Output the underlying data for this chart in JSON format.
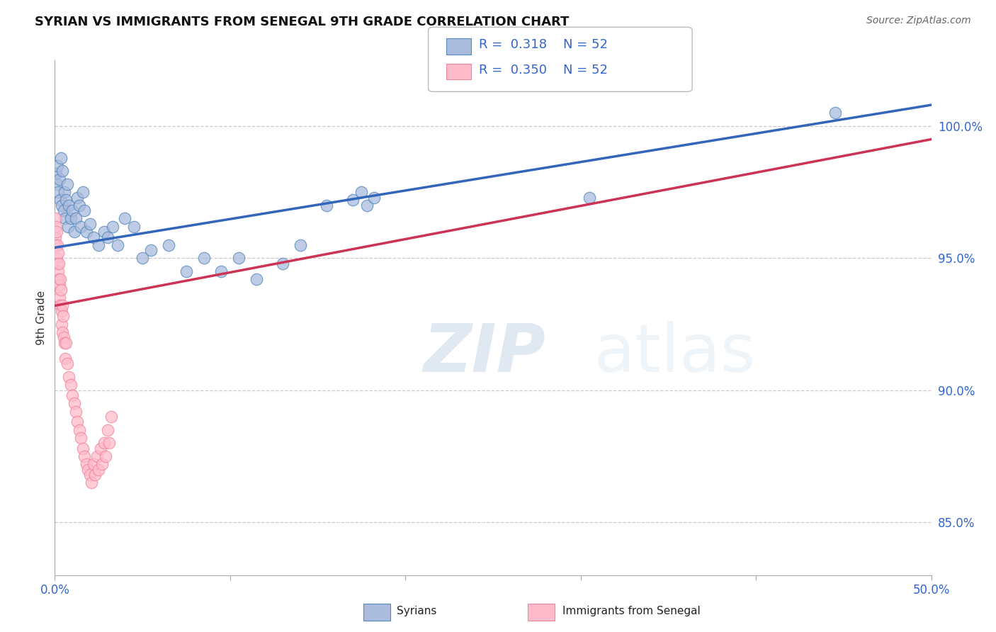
{
  "title": "SYRIAN VS IMMIGRANTS FROM SENEGAL 9TH GRADE CORRELATION CHART",
  "source": "Source: ZipAtlas.com",
  "ylabel": "9th Grade",
  "xlim": [
    0.0,
    50.0
  ],
  "ylim": [
    83.0,
    102.5
  ],
  "ytick_vals": [
    85.0,
    90.0,
    95.0,
    100.0
  ],
  "ytick_labels": [
    "85.0%",
    "90.0%",
    "95.0%",
    "100.0%"
  ],
  "xtick_vals": [
    0.0,
    10.0,
    20.0,
    30.0,
    40.0,
    50.0
  ],
  "xtick_labels": [
    "0.0%",
    "",
    "",
    "",
    "",
    "50.0%"
  ],
  "bg": "#ffffff",
  "grid_color": "#cccccc",
  "blue_fill": "#aabbdd",
  "blue_edge": "#5588bb",
  "pink_fill": "#ffbbcc",
  "pink_edge": "#ee8899",
  "line_blue": "#3366bb",
  "line_pink": "#cc3355",
  "R_blue": 0.318,
  "N_blue": 52,
  "R_pink": 0.35,
  "N_pink": 52,
  "label_syrians": "Syrians",
  "label_senegal": "Immigrants from Senegal",
  "watermark_zip": "ZIP",
  "watermark_atlas": "atlas",
  "blue_x": [
    0.05,
    0.1,
    0.15,
    0.2,
    0.25,
    0.3,
    0.35,
    0.4,
    0.45,
    0.5,
    0.55,
    0.6,
    0.65,
    0.7,
    0.75,
    0.8,
    0.9,
    1.0,
    1.1,
    1.2,
    1.3,
    1.4,
    1.5,
    1.6,
    1.7,
    1.8,
    2.0,
    2.2,
    2.5,
    2.8,
    3.0,
    3.3,
    3.6,
    4.0,
    4.5,
    5.0,
    5.5,
    6.5,
    7.5,
    8.5,
    9.5,
    10.5,
    11.5,
    13.0,
    14.0,
    15.5,
    17.0,
    17.5,
    17.8,
    18.2,
    44.5,
    30.5
  ],
  "blue_y": [
    98.2,
    97.8,
    98.5,
    97.5,
    98.0,
    97.2,
    98.8,
    97.0,
    98.3,
    96.8,
    97.5,
    96.5,
    97.2,
    97.8,
    96.2,
    97.0,
    96.5,
    96.8,
    96.0,
    96.5,
    97.3,
    97.0,
    96.2,
    97.5,
    96.8,
    96.0,
    96.3,
    95.8,
    95.5,
    96.0,
    95.8,
    96.2,
    95.5,
    96.5,
    96.2,
    95.0,
    95.3,
    95.5,
    94.5,
    95.0,
    94.5,
    95.0,
    94.2,
    94.8,
    95.5,
    97.0,
    97.2,
    97.5,
    97.0,
    97.3,
    100.5,
    97.3
  ],
  "pink_x": [
    0.02,
    0.04,
    0.06,
    0.08,
    0.1,
    0.12,
    0.14,
    0.16,
    0.18,
    0.2,
    0.22,
    0.24,
    0.26,
    0.28,
    0.3,
    0.32,
    0.35,
    0.38,
    0.4,
    0.42,
    0.45,
    0.48,
    0.5,
    0.55,
    0.6,
    0.65,
    0.7,
    0.8,
    0.9,
    1.0,
    1.1,
    1.2,
    1.3,
    1.4,
    1.5,
    1.6,
    1.7,
    1.8,
    1.9,
    2.0,
    2.1,
    2.2,
    2.3,
    2.4,
    2.5,
    2.6,
    2.7,
    2.8,
    2.9,
    3.0,
    3.1,
    3.2
  ],
  "pink_y": [
    96.5,
    95.8,
    96.2,
    95.5,
    95.0,
    96.0,
    94.8,
    95.5,
    94.5,
    95.2,
    94.2,
    94.8,
    94.0,
    93.5,
    94.2,
    93.2,
    93.8,
    93.0,
    92.5,
    93.2,
    92.2,
    92.8,
    92.0,
    91.8,
    91.2,
    91.8,
    91.0,
    90.5,
    90.2,
    89.8,
    89.5,
    89.2,
    88.8,
    88.5,
    88.2,
    87.8,
    87.5,
    87.2,
    87.0,
    86.8,
    86.5,
    87.2,
    86.8,
    87.5,
    87.0,
    87.8,
    87.2,
    88.0,
    87.5,
    88.5,
    88.0,
    89.0
  ]
}
